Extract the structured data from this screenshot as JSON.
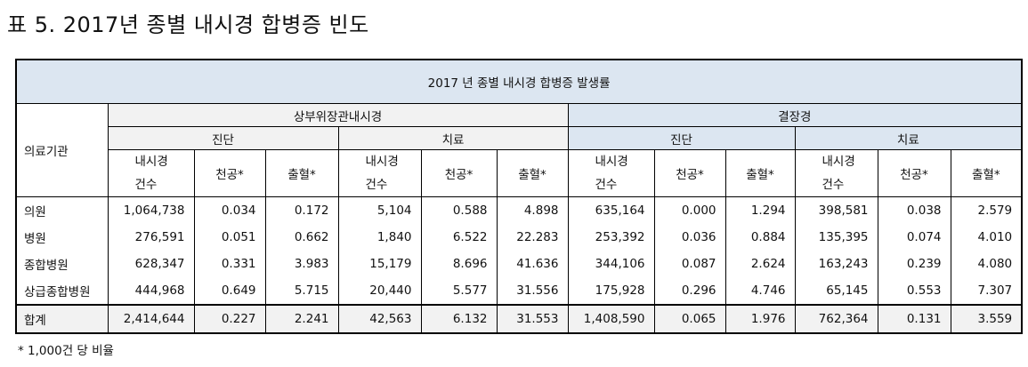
{
  "title": "표 5. 2017년 종별 내시경 합병증 빈도",
  "table": {
    "caption": "2017 년 종별 내시경 합병증 발생률",
    "institution_header": "의료기관",
    "groups": [
      {
        "label": "상부위장관내시경",
        "subgroups": [
          {
            "label": "진단",
            "cols": [
              "내시경\n건수",
              "천공*",
              "출혈*"
            ]
          },
          {
            "label": "치료",
            "cols": [
              "내시경\n건수",
              "천공*",
              "출혈*"
            ]
          }
        ]
      },
      {
        "label": "결장경",
        "subgroups": [
          {
            "label": "진단",
            "cols": [
              "내시경\n건수",
              "천공*",
              "출혈*"
            ]
          },
          {
            "label": "치료",
            "cols": [
              "내시경\n건수",
              "천공*",
              "출혈*"
            ]
          }
        ]
      }
    ],
    "rows": [
      {
        "name": "의원",
        "values": [
          "1,064,738",
          "0.034",
          "0.172",
          "5,104",
          "0.588",
          "4.898",
          "635,164",
          "0.000",
          "1.294",
          "398,581",
          "0.038",
          "2.579"
        ]
      },
      {
        "name": "병원",
        "values": [
          "276,591",
          "0.051",
          "0.662",
          "1,840",
          "6.522",
          "22.283",
          "253,392",
          "0.036",
          "0.884",
          "135,395",
          "0.074",
          "4.010"
        ]
      },
      {
        "name": "종합병원",
        "values": [
          "628,347",
          "0.331",
          "3.983",
          "15,179",
          "8.696",
          "41.636",
          "344,106",
          "0.087",
          "2.624",
          "163,243",
          "0.239",
          "4.080"
        ]
      },
      {
        "name": "상급종합병원",
        "values": [
          "444,968",
          "0.649",
          "5.715",
          "20,440",
          "5.577",
          "31.556",
          "175,928",
          "0.296",
          "4.746",
          "65,145",
          "0.553",
          "7.307"
        ]
      }
    ],
    "total": {
      "name": "합계",
      "values": [
        "2,414,644",
        "0.227",
        "2.241",
        "42,563",
        "6.132",
        "31.553",
        "1,408,590",
        "0.065",
        "1.976",
        "762,364",
        "0.131",
        "3.559"
      ]
    }
  },
  "footnote": "* 1,000건 당 비율",
  "colors": {
    "header_blue": "#dce6f1",
    "header_gray": "#f2f2f2"
  }
}
